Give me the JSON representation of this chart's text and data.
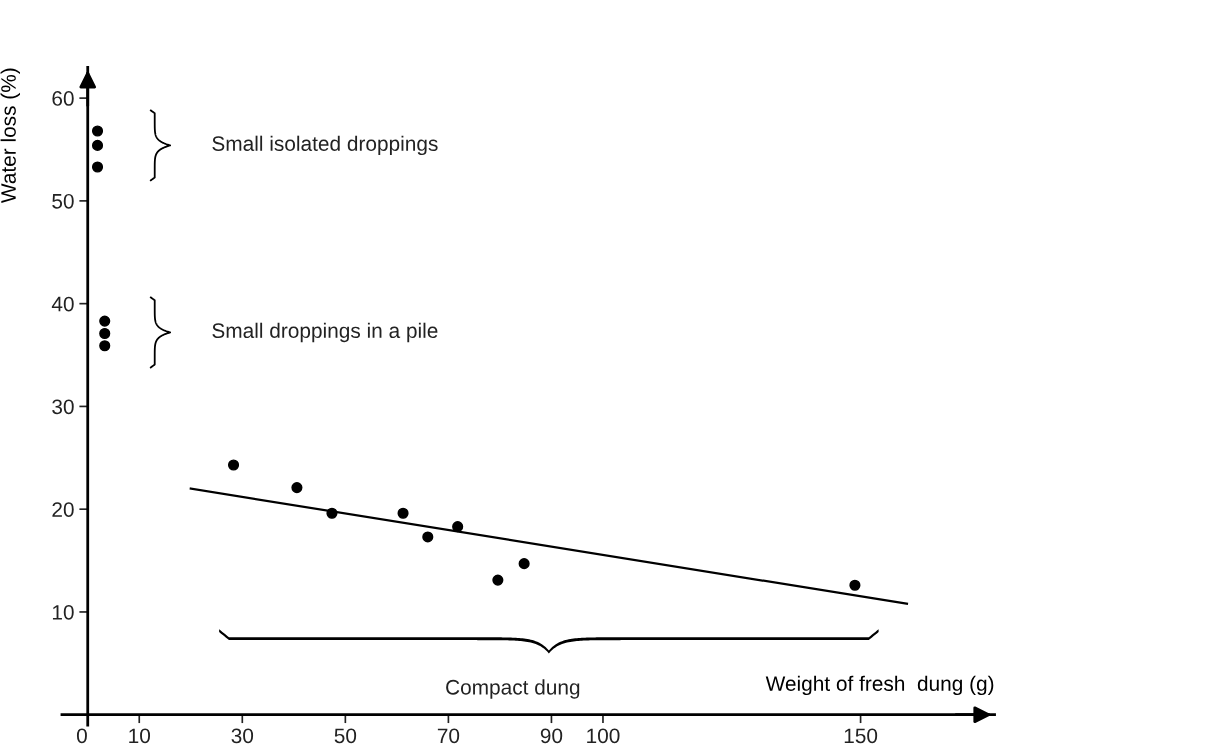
{
  "chart_data": {
    "type": "scatter",
    "xlabel": "Weight of fresh  dung (g)",
    "ylabel": "Water loss (%)",
    "xlim": [
      -5,
      176
    ],
    "ylim": [
      -1,
      63
    ],
    "xticks": [
      0,
      10,
      30,
      50,
      70,
      90,
      100,
      150
    ],
    "yticks": [
      10,
      20,
      30,
      40,
      50,
      60
    ],
    "grid": false,
    "legend": false,
    "series": [
      {
        "color": "#000000",
        "marker": "circle",
        "x": [
          1.9,
          1.9,
          1.9,
          3.3,
          3.3,
          3.3,
          28.3,
          40.6,
          47.4,
          61.2,
          66.0,
          71.8,
          79.6,
          84.7,
          148.9
        ],
        "values": [
          56.8,
          55.4,
          53.3,
          38.3,
          37.1,
          35.9,
          24.3,
          22.1,
          19.6,
          19.6,
          17.3,
          18.3,
          13.1,
          14.7,
          12.6
        ]
      },
      {
        "type": "line",
        "color": "#000000",
        "line_style": "solid",
        "x": [
          20,
          159
        ],
        "values": [
          22.0,
          10.8
        ]
      }
    ],
    "annotations": [
      "Small isolated droppings",
      "Small droppings in a pile",
      "Compact dung"
    ]
  }
}
